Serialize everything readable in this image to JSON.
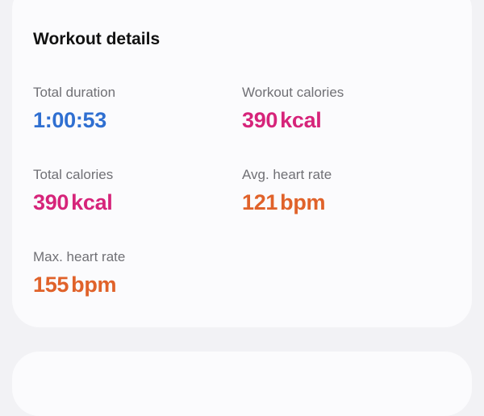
{
  "card": {
    "title": "Workout details"
  },
  "metrics": [
    {
      "label": "Total duration",
      "value": "1:00:53",
      "unit": "",
      "color": "#2f6fd1"
    },
    {
      "label": "Workout calories",
      "value": "390",
      "unit": "kcal",
      "color": "#d6247a"
    },
    {
      "label": "Total calories",
      "value": "390",
      "unit": "kcal",
      "color": "#d6247a"
    },
    {
      "label": "Avg. heart rate",
      "value": "121",
      "unit": "bpm",
      "color": "#e0622a"
    },
    {
      "label": "Max. heart rate",
      "value": "155",
      "unit": "bpm",
      "color": "#e0622a"
    }
  ]
}
